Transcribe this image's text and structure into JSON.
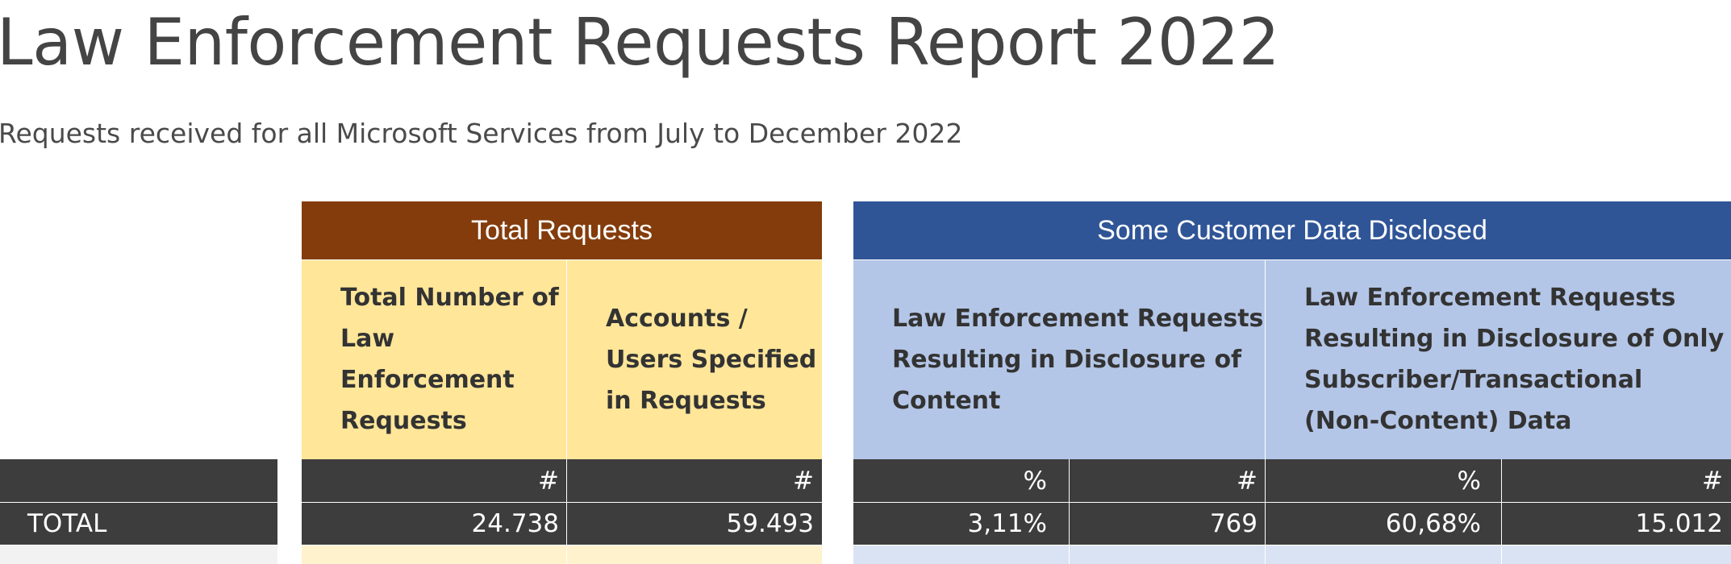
{
  "report": {
    "title": "Law Enforcement Requests Report 2022",
    "subtitle": "Requests received for all Microsoft Services from July to December 2022"
  },
  "groups": {
    "total_requests": "Total Requests",
    "some_data_disclosed": "Some Customer Data Disclosed"
  },
  "columns": {
    "total_number": "Total Number of Law Enforcement Requests",
    "accounts_specified": "Accounts / Users Specified in Requests",
    "content_disclosure": "Law Enforcement Requests Resulting in Disclosure of Content",
    "noncontent_disclosure": "Law Enforcement Requests Resulting in Disclosure of Only Subscriber/Transactional (Non-Content) Data"
  },
  "units": {
    "count": "#",
    "percent": "%"
  },
  "total_row": {
    "label": "TOTAL",
    "total_number": "24.738",
    "accounts_specified": "59.493",
    "content_percent": "3,11%",
    "content_count": "769",
    "noncontent_percent": "60,68%",
    "noncontent_count": "15.012"
  },
  "colors": {
    "total_requests_header": "#843C0C",
    "total_requests_body": "#FFE699",
    "disclosed_header": "#2F5597",
    "disclosed_body": "#B4C6E7",
    "dark_row": "#3D3D3D",
    "next_row_left": "#F2F2F2",
    "next_row_yellow": "#FFF2CC",
    "next_row_blue": "#DAE3F3"
  }
}
